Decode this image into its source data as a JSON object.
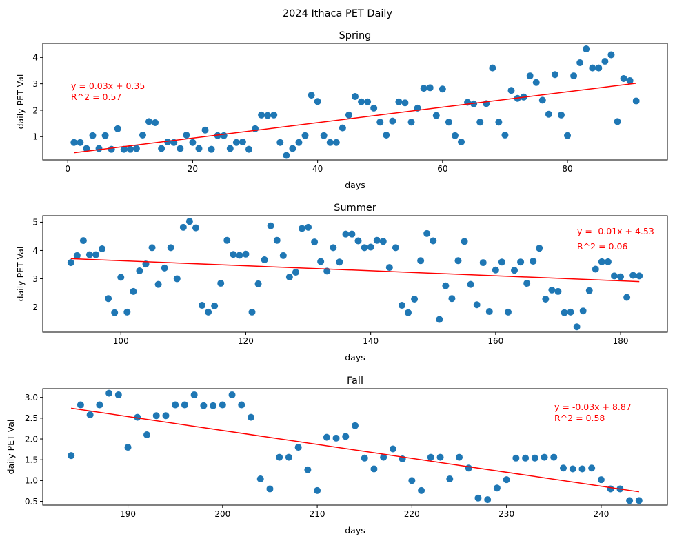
{
  "figure": {
    "title": "2024 Ithaca PET Daily"
  },
  "colors": {
    "points": "#1f77b4",
    "fit": "#ff0000",
    "axes": "#000000",
    "background": "#ffffff"
  },
  "chart_data": [
    {
      "type": "scatter",
      "title": "Spring",
      "xlabel": "days",
      "ylabel": "daily PET Val",
      "xlim": [
        -4,
        96
      ],
      "ylim": [
        0.12,
        4.53
      ],
      "xticks": [
        0,
        20,
        40,
        60,
        80
      ],
      "yticks": [
        1,
        2,
        3,
        4
      ],
      "grid": false,
      "series": [
        {
          "x": [
            1,
            2,
            3,
            4,
            5,
            6,
            7,
            8,
            9,
            10,
            11,
            12,
            13,
            14,
            15,
            16,
            17,
            18,
            19,
            20,
            21,
            22,
            23,
            24,
            25,
            26,
            27,
            28,
            29,
            30,
            31,
            32,
            33,
            34,
            35,
            36,
            37,
            38,
            39,
            40,
            41,
            42,
            43,
            44,
            45,
            46,
            47,
            48,
            49,
            50,
            51,
            52,
            53,
            54,
            55,
            56,
            57,
            58,
            59,
            60,
            61,
            62,
            63,
            64,
            65,
            66,
            67,
            68,
            69,
            70,
            71,
            72,
            73,
            74,
            75,
            76,
            77,
            78,
            79,
            80,
            81,
            82,
            83,
            84,
            85,
            86,
            87,
            88,
            89,
            90,
            91
          ],
          "y": [
            0.78,
            0.78,
            0.55,
            1.04,
            0.55,
            1.04,
            0.52,
            1.3,
            0.52,
            0.52,
            0.55,
            1.06,
            1.57,
            1.53,
            0.55,
            0.8,
            0.78,
            0.55,
            1.06,
            0.78,
            0.55,
            1.25,
            0.52,
            1.04,
            1.04,
            0.55,
            0.78,
            0.8,
            0.52,
            1.3,
            1.82,
            1.8,
            1.82,
            0.78,
            0.29,
            0.55,
            0.78,
            1.04,
            2.57,
            2.33,
            1.04,
            0.78,
            0.78,
            1.33,
            1.82,
            2.52,
            2.32,
            2.32,
            2.08,
            1.55,
            1.06,
            1.59,
            2.32,
            2.28,
            1.55,
            2.08,
            2.83,
            2.85,
            1.8,
            2.8,
            1.55,
            1.04,
            0.8,
            2.3,
            2.24,
            1.55,
            2.25,
            3.6,
            1.55,
            1.06,
            2.75,
            2.45,
            2.5,
            3.3,
            3.05,
            2.38,
            1.85,
            3.35,
            1.82,
            1.04,
            3.3,
            3.8,
            4.32,
            3.6,
            3.6,
            3.85,
            4.1,
            1.57,
            3.2,
            3.12,
            2.35
          ]
        }
      ],
      "fit": {
        "slope": 0.03,
        "intercept": 0.35,
        "x_range": [
          1,
          91
        ],
        "y_range": [
          0.39,
          3.02
        ]
      },
      "annotation": {
        "equation": "y = 0.03x + 0.35",
        "r2": "R^2 = 0.57"
      }
    },
    {
      "type": "scatter",
      "title": "Summer",
      "xlabel": "days",
      "ylabel": "daily PET Val",
      "xlim": [
        87.5,
        187.5
      ],
      "ylim": [
        1.11,
        5.23
      ],
      "xticks": [
        100,
        120,
        140,
        160,
        180
      ],
      "yticks": [
        2,
        3,
        4,
        5
      ],
      "grid": false,
      "series": [
        {
          "x": [
            92,
            93,
            94,
            95,
            96,
            97,
            98,
            99,
            100,
            101,
            102,
            103,
            104,
            105,
            106,
            107,
            108,
            109,
            110,
            111,
            112,
            113,
            114,
            115,
            116,
            117,
            118,
            119,
            120,
            121,
            122,
            123,
            124,
            125,
            126,
            127,
            128,
            129,
            130,
            131,
            132,
            133,
            134,
            135,
            136,
            137,
            138,
            139,
            140,
            141,
            142,
            143,
            144,
            145,
            146,
            147,
            148,
            149,
            150,
            151,
            152,
            153,
            154,
            155,
            156,
            157,
            158,
            159,
            160,
            161,
            162,
            163,
            164,
            165,
            166,
            167,
            168,
            169,
            170,
            171,
            172,
            173,
            174,
            175,
            176,
            177,
            178,
            179,
            180,
            181,
            182,
            183
          ],
          "y": [
            3.57,
            3.82,
            4.35,
            3.85,
            3.85,
            4.06,
            2.3,
            1.8,
            3.05,
            1.82,
            2.55,
            3.28,
            3.52,
            4.1,
            2.8,
            3.38,
            4.1,
            3.0,
            4.82,
            5.03,
            4.8,
            2.06,
            1.82,
            2.04,
            2.84,
            4.36,
            3.86,
            3.83,
            3.87,
            1.82,
            2.82,
            3.67,
            4.87,
            4.36,
            3.82,
            3.06,
            3.23,
            4.78,
            4.82,
            4.3,
            3.61,
            3.27,
            4.1,
            3.59,
            4.58,
            4.58,
            4.34,
            4.1,
            4.12,
            4.36,
            4.32,
            3.4,
            4.1,
            2.06,
            1.8,
            2.28,
            3.64,
            4.6,
            4.34,
            1.56,
            2.75,
            2.3,
            3.64,
            4.32,
            2.8,
            2.08,
            3.57,
            1.84,
            3.31,
            3.59,
            1.82,
            3.3,
            3.59,
            2.84,
            3.62,
            4.08,
            2.28,
            2.6,
            2.55,
            1.8,
            1.82,
            1.3,
            1.86,
            2.58,
            3.34,
            3.6,
            3.6,
            3.1,
            3.07,
            2.34,
            3.12,
            3.1
          ]
        }
      ],
      "fit": {
        "slope": -0.01,
        "intercept": 4.53,
        "x_range": [
          92,
          183
        ],
        "y_range": [
          3.71,
          2.9
        ]
      },
      "annotation": {
        "equation": "y = -0.01x + 4.53",
        "r2": "R^2 = 0.06"
      }
    },
    {
      "type": "scatter",
      "title": "Fall",
      "xlabel": "days",
      "ylabel": "daily PET Val",
      "xlim": [
        181,
        247
      ],
      "ylim": [
        0.41,
        3.21
      ],
      "xticks": [
        190,
        200,
        210,
        220,
        230,
        240
      ],
      "yticks": [
        0.5,
        1.0,
        1.5,
        2.0,
        2.5,
        3.0
      ],
      "ytick_labels": [
        "0.5",
        "1.0",
        "1.5",
        "2.0",
        "2.5",
        "3.0"
      ],
      "grid": false,
      "series": [
        {
          "x": [
            184,
            185,
            186,
            187,
            188,
            189,
            190,
            191,
            192,
            193,
            194,
            195,
            196,
            197,
            198,
            199,
            200,
            201,
            202,
            203,
            204,
            205,
            206,
            207,
            208,
            209,
            210,
            211,
            212,
            213,
            214,
            215,
            216,
            217,
            218,
            219,
            220,
            221,
            222,
            223,
            224,
            225,
            226,
            227,
            228,
            229,
            230,
            231,
            232,
            233,
            234,
            235,
            236,
            237,
            238,
            239,
            240,
            241,
            242,
            243,
            244
          ],
          "y": [
            1.6,
            2.82,
            2.58,
            2.82,
            3.1,
            3.06,
            1.8,
            2.52,
            2.1,
            2.56,
            2.56,
            2.82,
            2.82,
            3.06,
            2.8,
            2.8,
            2.82,
            3.06,
            2.82,
            2.52,
            1.04,
            0.8,
            1.56,
            1.56,
            1.8,
            1.26,
            0.76,
            2.04,
            2.02,
            2.06,
            2.32,
            1.54,
            1.28,
            1.56,
            1.76,
            1.52,
            1.0,
            0.76,
            1.56,
            1.56,
            1.04,
            1.56,
            1.3,
            0.58,
            0.54,
            0.82,
            1.02,
            1.54,
            1.54,
            1.54,
            1.56,
            1.56,
            1.3,
            1.28,
            1.28,
            1.3,
            1.02,
            0.8,
            0.8,
            0.52,
            0.52
          ]
        }
      ],
      "fit": {
        "slope": -0.03,
        "intercept": 8.87,
        "x_range": [
          184,
          244
        ],
        "y_range": [
          2.74,
          0.73
        ]
      },
      "annotation": {
        "equation": "y = -0.03x + 8.87",
        "r2": "R^2 = 0.58"
      }
    }
  ]
}
